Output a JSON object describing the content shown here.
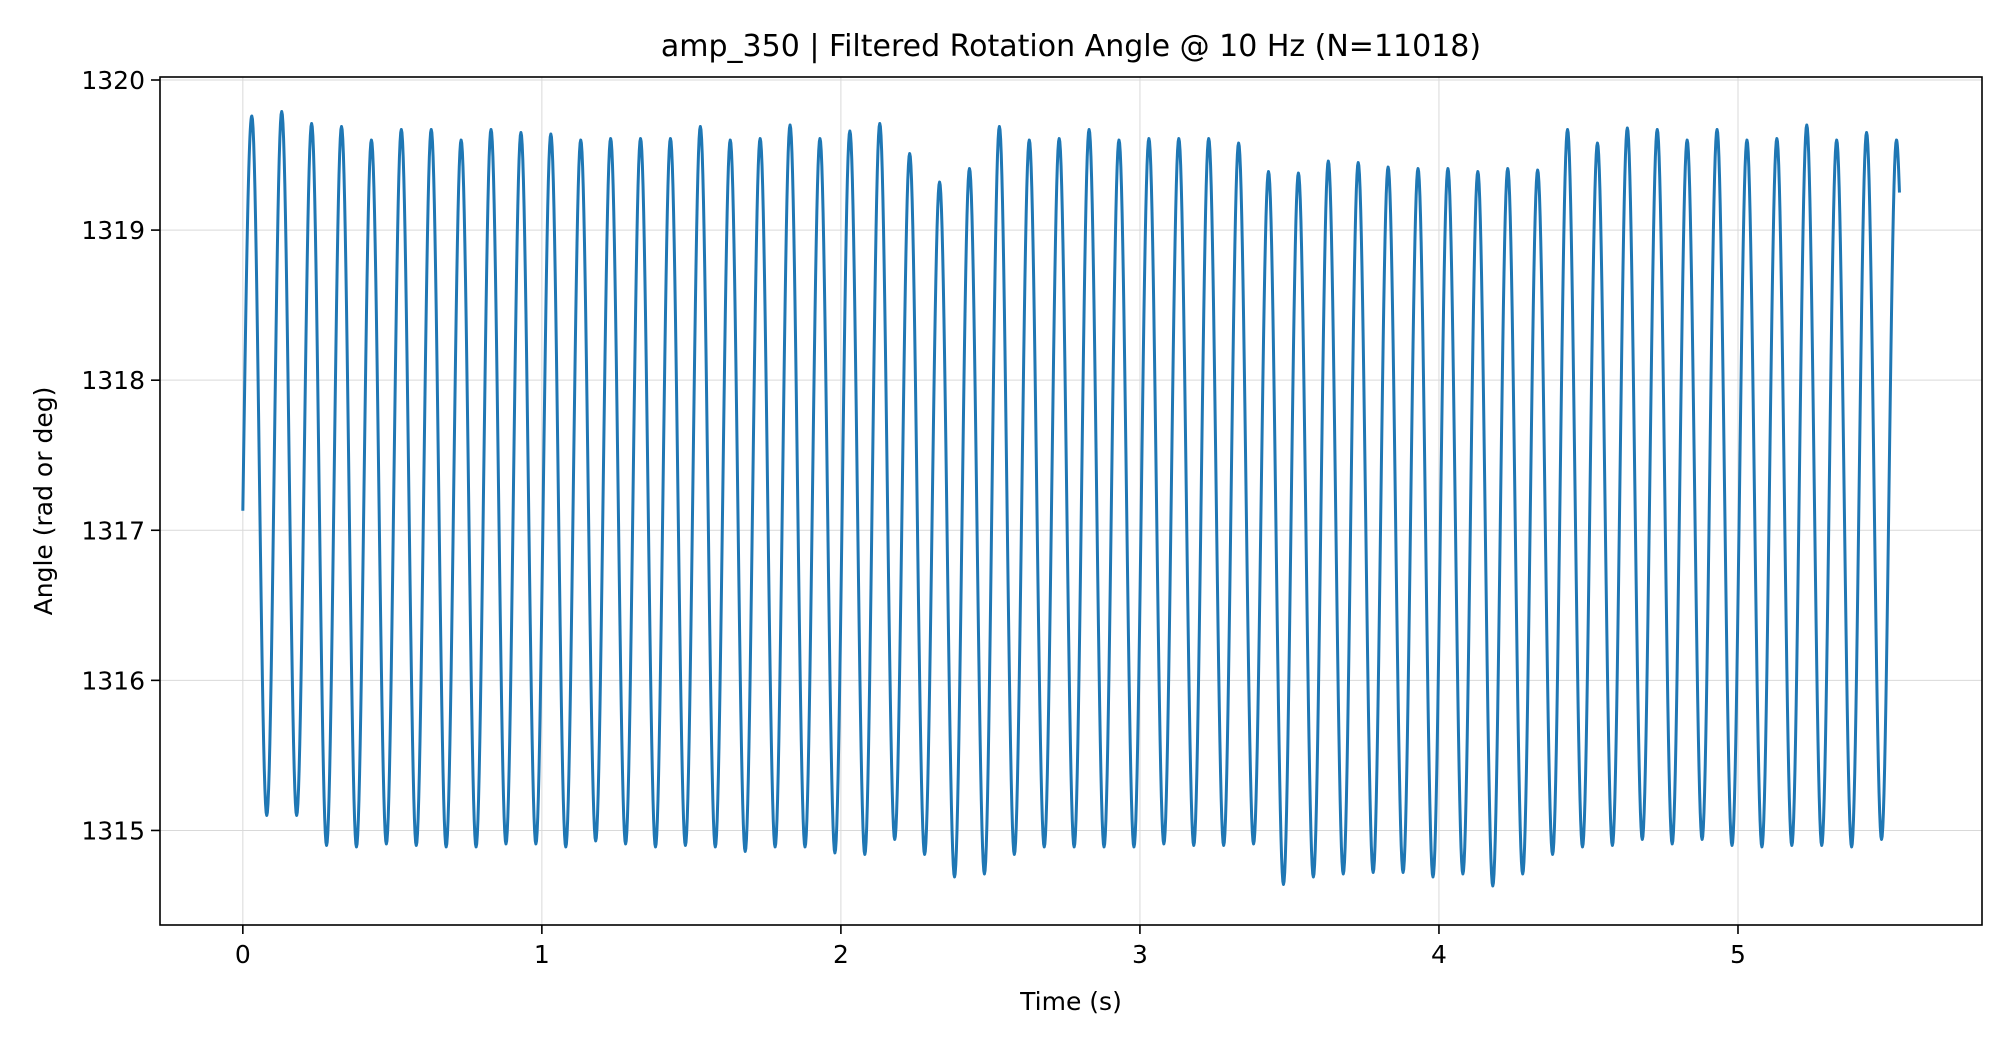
{
  "chart_data": {
    "type": "line",
    "title": "amp_350 | Filtered Rotation Angle @ 10 Hz  (N=11018)",
    "xlabel": "Time (s)",
    "ylabel": "Angle (rad or deg)",
    "xlim": [
      -0.277,
      5.816
    ],
    "ylim": [
      1314.37,
      1320.02
    ],
    "xticks": [
      0,
      1,
      2,
      3,
      4,
      5
    ],
    "xtick_labels": [
      "0",
      "1",
      "2",
      "3",
      "4",
      "5"
    ],
    "yticks": [
      1315,
      1316,
      1317,
      1318,
      1319,
      1320
    ],
    "ytick_labels": [
      "1315",
      "1316",
      "1317",
      "1318",
      "1319",
      "1320"
    ],
    "grid": true,
    "series": [
      {
        "color": "#1f77b4",
        "start": {
          "x": 0.0,
          "y": 1317.13
        },
        "end": {
          "x": 5.54,
          "y": 1319.25
        },
        "peaks": [
          [
            0.03,
            1319.76
          ],
          [
            0.13,
            1319.79
          ],
          [
            0.23,
            1319.71
          ],
          [
            0.33,
            1319.69
          ],
          [
            0.43,
            1319.6
          ],
          [
            0.53,
            1319.67
          ],
          [
            0.63,
            1319.67
          ],
          [
            0.73,
            1319.6
          ],
          [
            0.83,
            1319.67
          ],
          [
            0.93,
            1319.65
          ],
          [
            1.03,
            1319.64
          ],
          [
            1.13,
            1319.6
          ],
          [
            1.23,
            1319.61
          ],
          [
            1.33,
            1319.61
          ],
          [
            1.43,
            1319.61
          ],
          [
            1.53,
            1319.69
          ],
          [
            1.63,
            1319.6
          ],
          [
            1.73,
            1319.61
          ],
          [
            1.83,
            1319.7
          ],
          [
            1.93,
            1319.61
          ],
          [
            2.03,
            1319.66
          ],
          [
            2.13,
            1319.71
          ],
          [
            2.23,
            1319.51
          ],
          [
            2.33,
            1319.32
          ],
          [
            2.43,
            1319.41
          ],
          [
            2.53,
            1319.69
          ],
          [
            2.63,
            1319.6
          ],
          [
            2.73,
            1319.61
          ],
          [
            2.83,
            1319.67
          ],
          [
            2.93,
            1319.6
          ],
          [
            3.03,
            1319.61
          ],
          [
            3.13,
            1319.61
          ],
          [
            3.23,
            1319.61
          ],
          [
            3.33,
            1319.58
          ],
          [
            3.43,
            1319.39
          ],
          [
            3.53,
            1319.38
          ],
          [
            3.63,
            1319.46
          ],
          [
            3.73,
            1319.45
          ],
          [
            3.83,
            1319.42
          ],
          [
            3.93,
            1319.41
          ],
          [
            4.03,
            1319.41
          ],
          [
            4.13,
            1319.39
          ],
          [
            4.23,
            1319.41
          ],
          [
            4.33,
            1319.4
          ],
          [
            4.43,
            1319.67
          ],
          [
            4.53,
            1319.58
          ],
          [
            4.63,
            1319.68
          ],
          [
            4.73,
            1319.67
          ],
          [
            4.83,
            1319.6
          ],
          [
            4.93,
            1319.67
          ],
          [
            5.03,
            1319.6
          ],
          [
            5.13,
            1319.61
          ],
          [
            5.23,
            1319.7
          ],
          [
            5.33,
            1319.6
          ],
          [
            5.43,
            1319.65
          ],
          [
            5.53,
            1319.6
          ]
        ],
        "troughs": [
          [
            0.08,
            1315.1
          ],
          [
            0.18,
            1315.1
          ],
          [
            0.28,
            1314.9
          ],
          [
            0.38,
            1314.89
          ],
          [
            0.48,
            1314.91
          ],
          [
            0.58,
            1314.9
          ],
          [
            0.68,
            1314.89
          ],
          [
            0.78,
            1314.89
          ],
          [
            0.88,
            1314.91
          ],
          [
            0.98,
            1314.91
          ],
          [
            1.08,
            1314.89
          ],
          [
            1.18,
            1314.93
          ],
          [
            1.28,
            1314.91
          ],
          [
            1.38,
            1314.89
          ],
          [
            1.48,
            1314.9
          ],
          [
            1.58,
            1314.89
          ],
          [
            1.68,
            1314.86
          ],
          [
            1.78,
            1314.89
          ],
          [
            1.88,
            1314.89
          ],
          [
            1.98,
            1314.85
          ],
          [
            2.08,
            1314.84
          ],
          [
            2.18,
            1314.94
          ],
          [
            2.28,
            1314.84
          ],
          [
            2.38,
            1314.69
          ],
          [
            2.48,
            1314.71
          ],
          [
            2.58,
            1314.84
          ],
          [
            2.68,
            1314.89
          ],
          [
            2.78,
            1314.89
          ],
          [
            2.88,
            1314.89
          ],
          [
            2.98,
            1314.89
          ],
          [
            3.08,
            1314.91
          ],
          [
            3.18,
            1314.9
          ],
          [
            3.28,
            1314.9
          ],
          [
            3.38,
            1314.91
          ],
          [
            3.48,
            1314.64
          ],
          [
            3.58,
            1314.69
          ],
          [
            3.68,
            1314.71
          ],
          [
            3.78,
            1314.72
          ],
          [
            3.88,
            1314.72
          ],
          [
            3.98,
            1314.69
          ],
          [
            4.08,
            1314.71
          ],
          [
            4.18,
            1314.63
          ],
          [
            4.28,
            1314.71
          ],
          [
            4.38,
            1314.84
          ],
          [
            4.48,
            1314.89
          ],
          [
            4.58,
            1314.9
          ],
          [
            4.68,
            1314.94
          ],
          [
            4.78,
            1314.91
          ],
          [
            4.88,
            1314.94
          ],
          [
            4.98,
            1314.9
          ],
          [
            5.08,
            1314.89
          ],
          [
            5.18,
            1314.9
          ],
          [
            5.28,
            1314.9
          ],
          [
            5.38,
            1314.89
          ],
          [
            5.48,
            1314.94
          ]
        ]
      }
    ]
  }
}
